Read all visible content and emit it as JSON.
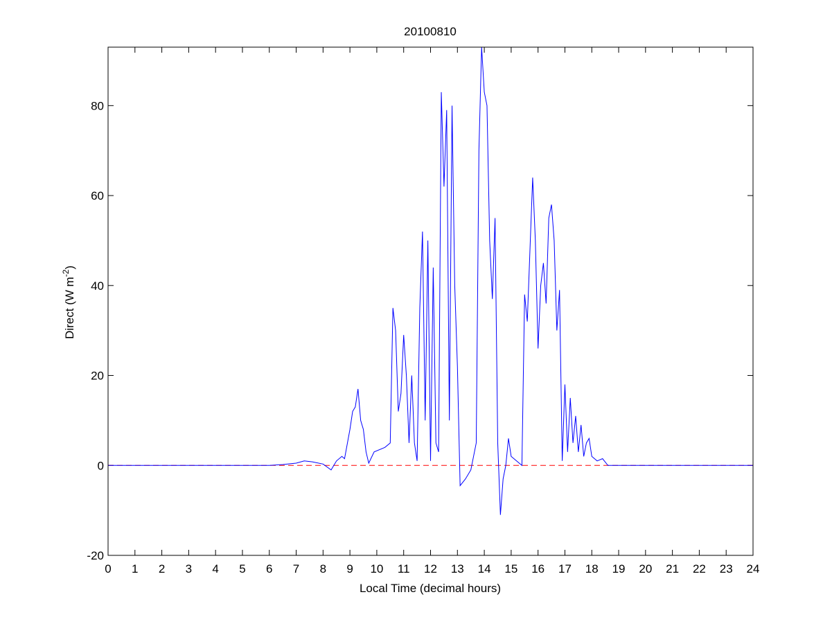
{
  "chart_data": {
    "type": "line",
    "title": "20100810",
    "xlabel": "Local Time (decimal hours)",
    "ylabel": {
      "text": "Direct (W m",
      "superscript": "-2",
      "suffix": ")"
    },
    "xlim": [
      0,
      24
    ],
    "ylim": [
      -20,
      93
    ],
    "xticks": [
      0,
      1,
      2,
      3,
      4,
      5,
      6,
      7,
      8,
      9,
      10,
      11,
      12,
      13,
      14,
      15,
      16,
      17,
      18,
      19,
      20,
      21,
      22,
      23,
      24
    ],
    "yticks": [
      -20,
      0,
      20,
      40,
      60,
      80
    ],
    "reference_line": {
      "value": 0,
      "color": "#ff0000",
      "style": "dashed"
    },
    "series": [
      {
        "name": "Direct",
        "color": "#0000ff",
        "x": [
          0,
          1,
          2,
          3,
          4,
          5,
          6,
          6.5,
          7,
          7.3,
          7.6,
          8,
          8.3,
          8.5,
          8.7,
          8.8,
          9,
          9.1,
          9.2,
          9.3,
          9.4,
          9.5,
          9.6,
          9.7,
          9.9,
          10.3,
          10.5,
          10.6,
          10.7,
          10.8,
          10.9,
          11,
          11.1,
          11.2,
          11.3,
          11.4,
          11.5,
          11.6,
          11.7,
          11.8,
          11.9,
          12,
          12.1,
          12.2,
          12.3,
          12.4,
          12.5,
          12.6,
          12.7,
          12.8,
          12.9,
          13,
          13.1,
          13.3,
          13.5,
          13.7,
          13.8,
          13.9,
          14,
          14.1,
          14.2,
          14.3,
          14.4,
          14.5,
          14.6,
          14.7,
          14.8,
          14.9,
          15,
          15.2,
          15.4,
          15.5,
          15.6,
          15.7,
          15.8,
          15.9,
          16,
          16.1,
          16.2,
          16.3,
          16.4,
          16.5,
          16.6,
          16.7,
          16.8,
          16.9,
          17,
          17.1,
          17.2,
          17.3,
          17.4,
          17.5,
          17.6,
          17.7,
          17.8,
          17.9,
          18,
          18.2,
          18.4,
          18.6,
          19,
          20,
          21,
          22,
          23,
          24
        ],
        "values": [
          0,
          0,
          0,
          0,
          0,
          0,
          0,
          0.2,
          0.5,
          1,
          0.8,
          0.3,
          -1,
          1,
          2,
          1.5,
          8,
          12,
          13,
          17,
          10,
          8,
          3,
          0.5,
          3,
          4,
          5,
          35,
          30,
          12,
          16,
          29,
          20,
          5,
          20,
          5,
          1,
          35,
          52,
          10,
          50,
          1,
          44,
          5,
          3,
          83,
          62,
          79,
          10,
          80,
          40,
          22,
          -4.5,
          -3,
          -1,
          5,
          70,
          93,
          83,
          80,
          50,
          37,
          55,
          5,
          -11,
          -3,
          0,
          6,
          2,
          1,
          0,
          38,
          32,
          48,
          64,
          50,
          26,
          40,
          45,
          36,
          55,
          58,
          50,
          30,
          39,
          1,
          18,
          3,
          15,
          5,
          11,
          3,
          9,
          2,
          5,
          6,
          2,
          1,
          1.5,
          0,
          0,
          0,
          0,
          0,
          0,
          0
        ]
      }
    ]
  }
}
